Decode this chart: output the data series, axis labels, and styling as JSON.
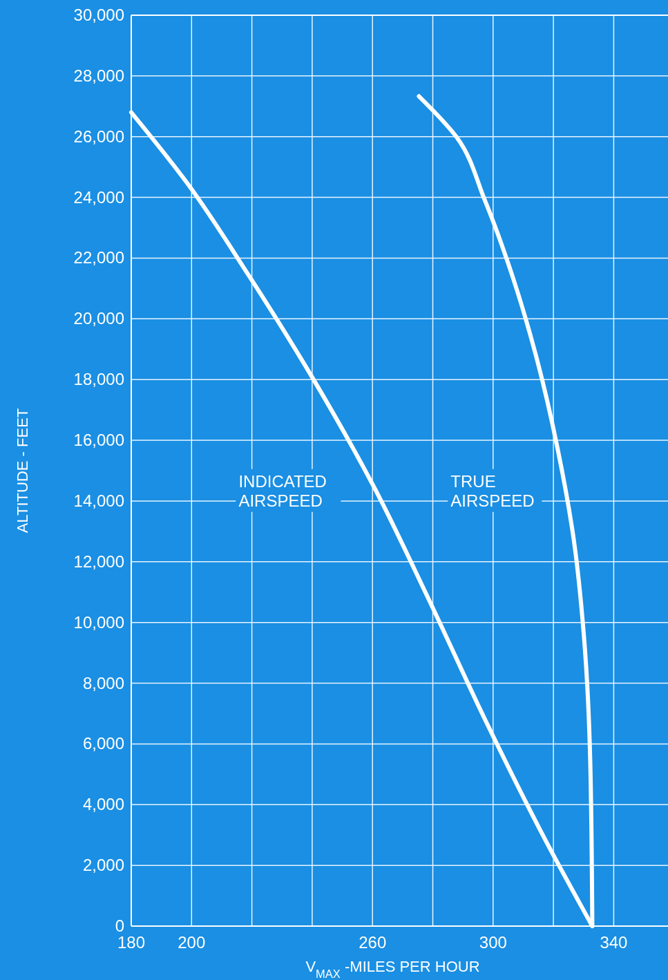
{
  "chart_data": {
    "type": "line",
    "xlabel": "V$_{MAX}$ -MILES PER HOUR",
    "ylabel": "ALTITUDE - FEET",
    "xlim": [
      180,
      358
    ],
    "ylim": [
      0,
      30000
    ],
    "xticks": [
      180,
      200,
      {
        "value": 220,
        "label": null
      },
      {
        "value": 240,
        "label": null
      },
      260,
      {
        "value": 280,
        "label": null
      },
      300,
      {
        "value": 320,
        "label": null
      },
      340
    ],
    "yticks": [
      0,
      {
        "value": 2000,
        "label": "2,000"
      },
      {
        "value": 4000,
        "label": "4,000"
      },
      {
        "value": 6000,
        "label": "6,000"
      },
      {
        "value": 8000,
        "label": "8,000"
      },
      {
        "value": 10000,
        "label": "10,000"
      },
      {
        "value": 12000,
        "label": "12,000"
      },
      {
        "value": 14000,
        "label": "14,000"
      },
      {
        "value": 16000,
        "label": "16,000"
      },
      {
        "value": 18000,
        "label": "18,000"
      },
      {
        "value": 20000,
        "label": "20,000"
      },
      {
        "value": 22000,
        "label": "22,000"
      },
      {
        "value": 24000,
        "label": "24,000"
      },
      {
        "value": 26000,
        "label": "26,000"
      },
      {
        "value": 28000,
        "label": "28,000"
      },
      {
        "value": 30000,
        "label": "30,000"
      }
    ],
    "grid": true,
    "line_style": "solid",
    "series": [
      {
        "color": "#ffffff",
        "x": [
          180,
          198.4,
          219.1,
          239.8,
          260.5,
          278.9,
          297.2,
          317.9,
          332.9
        ],
        "values": [
          26800,
          24490,
          21410,
          18110,
          14460,
          10710,
          6830,
          2730,
          0
        ]
      },
      {
        "color": "#ffffff",
        "x": [
          275.4,
          288,
          297.2,
          306.4,
          314.5,
          321.4,
          326.7,
          330.1,
          332.2,
          332.9
        ],
        "values": [
          27330,
          25970,
          23920,
          21410,
          18680,
          15720,
          12760,
          9570,
          5470,
          0
        ]
      }
    ],
    "annotations": [
      "INDICATED\nAIRSPEED",
      "TRUE\nAIRSPEED"
    ]
  }
}
